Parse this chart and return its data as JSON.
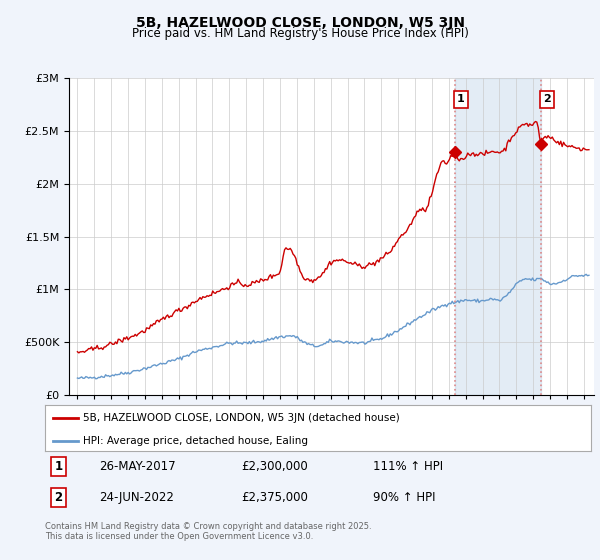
{
  "title": "5B, HAZELWOOD CLOSE, LONDON, W5 3JN",
  "subtitle": "Price paid vs. HM Land Registry's House Price Index (HPI)",
  "legend_line1": "5B, HAZELWOOD CLOSE, LONDON, W5 3JN (detached house)",
  "legend_line2": "HPI: Average price, detached house, Ealing",
  "footnote": "Contains HM Land Registry data © Crown copyright and database right 2025.\nThis data is licensed under the Open Government Licence v3.0.",
  "sale1_date_str": "26-MAY-2017",
  "sale1_price_str": "£2,300,000",
  "sale1_hpi_str": "111% ↑ HPI",
  "sale1_year": 2017.38,
  "sale1_value": 2300000,
  "sale2_date_str": "24-JUN-2022",
  "sale2_price_str": "£2,375,000",
  "sale2_hpi_str": "90% ↑ HPI",
  "sale2_year": 2022.47,
  "sale2_value": 2375000,
  "red_color": "#cc0000",
  "blue_color": "#6699cc",
  "shade_color": "#ddeeff",
  "dashed_color": "#dd8888",
  "background_color": "#f0f4fb",
  "plot_bg": "#ffffff",
  "ylim": [
    0,
    3000000
  ],
  "xlim_start": 1994.5,
  "xlim_end": 2025.6
}
